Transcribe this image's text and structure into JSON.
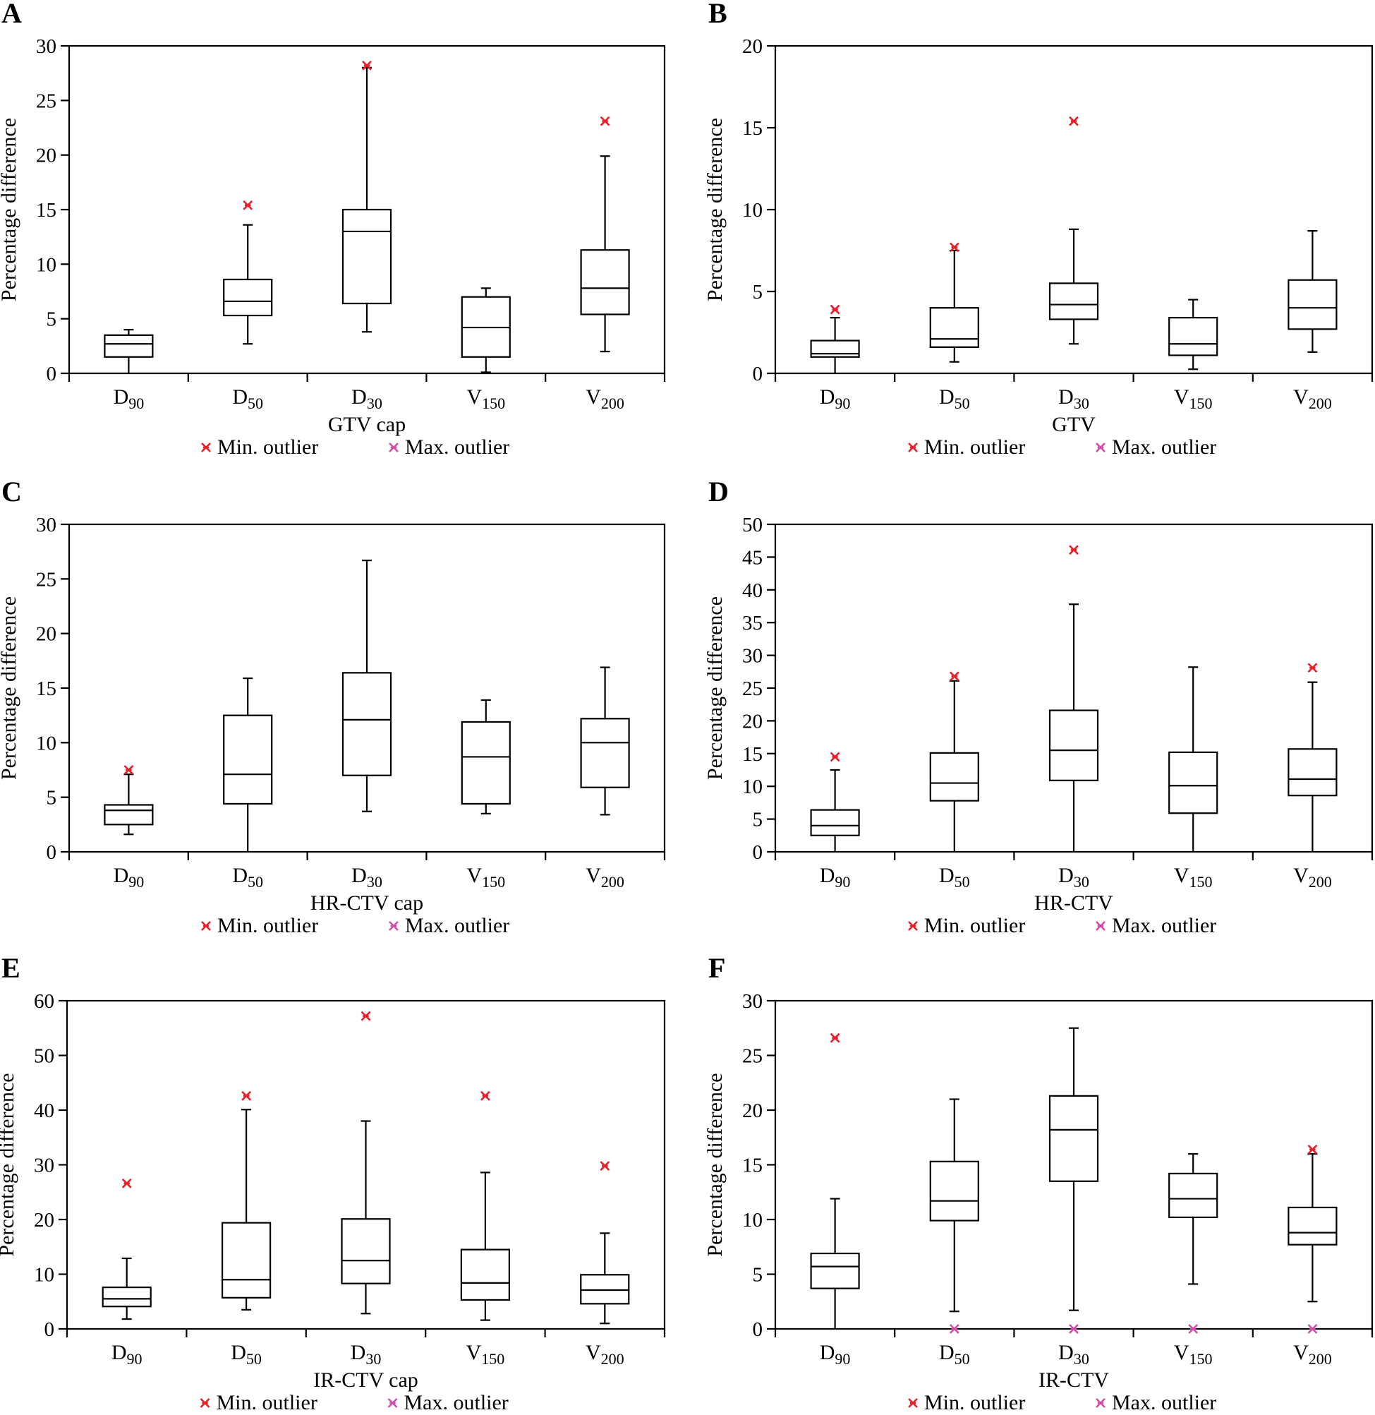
{
  "figure": {
    "marker_colors": {
      "min_outlier": "#e8202a",
      "max_outlier": "#d04fa8"
    },
    "legend": {
      "min_label": "Min. outlier",
      "max_label": "Max. outlier"
    }
  },
  "chart_data": [
    {
      "panel": "A",
      "type": "boxplot",
      "title": "",
      "xlabel": "GTV cap",
      "ylabel": "Percentage difference",
      "ylim": [
        0,
        30
      ],
      "yticks": [
        0,
        5,
        10,
        15,
        20,
        25,
        30
      ],
      "grid": false,
      "legend_position": "bottom-center",
      "categories": [
        {
          "base": "D",
          "sub": "90"
        },
        {
          "base": "D",
          "sub": "50"
        },
        {
          "base": "D",
          "sub": "30"
        },
        {
          "base": "V",
          "sub": "150"
        },
        {
          "base": "V",
          "sub": "200"
        }
      ],
      "boxes": [
        {
          "whisker_low": 0.0,
          "q1": 1.5,
          "median": 2.7,
          "q3": 3.5,
          "whisker_high": 4.0,
          "min_outlier": null,
          "max_outlier": null
        },
        {
          "whisker_low": 2.7,
          "q1": 5.3,
          "median": 6.6,
          "q3": 8.6,
          "whisker_high": 13.6,
          "min_outlier": 15.4,
          "max_outlier": null
        },
        {
          "whisker_low": 3.8,
          "q1": 6.4,
          "median": 13.0,
          "q3": 15.0,
          "whisker_high": 28.0,
          "min_outlier": 28.2,
          "max_outlier": null
        },
        {
          "whisker_low": 0.1,
          "q1": 1.5,
          "median": 4.2,
          "q3": 7.0,
          "whisker_high": 7.8,
          "min_outlier": null,
          "max_outlier": null
        },
        {
          "whisker_low": 2.0,
          "q1": 5.4,
          "median": 7.8,
          "q3": 11.3,
          "whisker_high": 19.9,
          "min_outlier": 23.1,
          "max_outlier": null
        }
      ]
    },
    {
      "panel": "B",
      "type": "boxplot",
      "title": "",
      "xlabel": "GTV",
      "ylabel": "Percentage difference",
      "ylim": [
        0,
        20
      ],
      "yticks": [
        0,
        5,
        10,
        15,
        20
      ],
      "grid": false,
      "legend_position": "bottom-center",
      "categories": [
        {
          "base": "D",
          "sub": "90"
        },
        {
          "base": "D",
          "sub": "50"
        },
        {
          "base": "D",
          "sub": "30"
        },
        {
          "base": "V",
          "sub": "150"
        },
        {
          "base": "V",
          "sub": "200"
        }
      ],
      "boxes": [
        {
          "whisker_low": 0.0,
          "q1": 1.0,
          "median": 1.2,
          "q3": 2.0,
          "whisker_high": 3.4,
          "min_outlier": 3.9,
          "max_outlier": null
        },
        {
          "whisker_low": 0.7,
          "q1": 1.6,
          "median": 2.1,
          "q3": 4.0,
          "whisker_high": 7.5,
          "min_outlier": 7.7,
          "max_outlier": null
        },
        {
          "whisker_low": 1.8,
          "q1": 3.3,
          "median": 4.2,
          "q3": 5.5,
          "whisker_high": 8.8,
          "min_outlier": 15.4,
          "max_outlier": null
        },
        {
          "whisker_low": 0.25,
          "q1": 1.1,
          "median": 1.8,
          "q3": 3.4,
          "whisker_high": 4.5,
          "min_outlier": null,
          "max_outlier": null
        },
        {
          "whisker_low": 1.3,
          "q1": 2.7,
          "median": 4.0,
          "q3": 5.7,
          "whisker_high": 8.7,
          "min_outlier": null,
          "max_outlier": null
        }
      ]
    },
    {
      "panel": "C",
      "type": "boxplot",
      "title": "",
      "xlabel": "HR-CTV cap",
      "ylabel": "Percentage difference",
      "ylim": [
        0,
        30
      ],
      "yticks": [
        0,
        5,
        10,
        15,
        20,
        25,
        30
      ],
      "grid": false,
      "legend_position": "bottom-center",
      "categories": [
        {
          "base": "D",
          "sub": "90"
        },
        {
          "base": "D",
          "sub": "50"
        },
        {
          "base": "D",
          "sub": "30"
        },
        {
          "base": "V",
          "sub": "150"
        },
        {
          "base": "V",
          "sub": "200"
        }
      ],
      "boxes": [
        {
          "whisker_low": 1.6,
          "q1": 2.5,
          "median": 3.8,
          "q3": 4.3,
          "whisker_high": 7.1,
          "min_outlier": 7.5,
          "max_outlier": null
        },
        {
          "whisker_low": 0.0,
          "q1": 4.4,
          "median": 7.1,
          "q3": 12.5,
          "whisker_high": 15.9,
          "min_outlier": null,
          "max_outlier": null
        },
        {
          "whisker_low": 3.7,
          "q1": 7.0,
          "median": 12.1,
          "q3": 16.4,
          "whisker_high": 26.7,
          "min_outlier": null,
          "max_outlier": null
        },
        {
          "whisker_low": 3.5,
          "q1": 4.4,
          "median": 8.7,
          "q3": 11.9,
          "whisker_high": 13.9,
          "min_outlier": null,
          "max_outlier": null
        },
        {
          "whisker_low": 3.4,
          "q1": 5.9,
          "median": 10.0,
          "q3": 12.2,
          "whisker_high": 16.9,
          "min_outlier": null,
          "max_outlier": null
        }
      ]
    },
    {
      "panel": "D",
      "type": "boxplot",
      "title": "",
      "xlabel": "HR-CTV",
      "ylabel": "Percentage difference",
      "ylim": [
        0,
        50
      ],
      "yticks": [
        0,
        5,
        10,
        15,
        20,
        25,
        30,
        35,
        40,
        45,
        50
      ],
      "grid": false,
      "legend_position": "bottom-center",
      "categories": [
        {
          "base": "D",
          "sub": "90"
        },
        {
          "base": "D",
          "sub": "50"
        },
        {
          "base": "D",
          "sub": "30"
        },
        {
          "base": "V",
          "sub": "150"
        },
        {
          "base": "V",
          "sub": "200"
        }
      ],
      "boxes": [
        {
          "whisker_low": 0.0,
          "q1": 2.5,
          "median": 4.0,
          "q3": 6.4,
          "whisker_high": 12.5,
          "min_outlier": 14.5,
          "max_outlier": null
        },
        {
          "whisker_low": 0.0,
          "q1": 7.8,
          "median": 10.5,
          "q3": 15.1,
          "whisker_high": 26.1,
          "min_outlier": 26.8,
          "max_outlier": null
        },
        {
          "whisker_low": 0.0,
          "q1": 10.9,
          "median": 15.5,
          "q3": 21.6,
          "whisker_high": 37.8,
          "min_outlier": 46.1,
          "max_outlier": null
        },
        {
          "whisker_low": 0.0,
          "q1": 5.9,
          "median": 10.1,
          "q3": 15.2,
          "whisker_high": 28.2,
          "min_outlier": null,
          "max_outlier": null
        },
        {
          "whisker_low": 0.0,
          "q1": 8.6,
          "median": 11.1,
          "q3": 15.7,
          "whisker_high": 25.9,
          "min_outlier": 28.1,
          "max_outlier": null
        }
      ]
    },
    {
      "panel": "E",
      "type": "boxplot",
      "title": "",
      "xlabel": "IR-CTV cap",
      "ylabel": "Percentage difference",
      "ylim": [
        0,
        60
      ],
      "yticks": [
        0,
        10,
        20,
        30,
        40,
        50,
        60
      ],
      "grid": false,
      "legend_position": "bottom-center",
      "categories": [
        {
          "base": "D",
          "sub": "90"
        },
        {
          "base": "D",
          "sub": "50"
        },
        {
          "base": "D",
          "sub": "30"
        },
        {
          "base": "V",
          "sub": "150"
        },
        {
          "base": "V",
          "sub": "200"
        }
      ],
      "boxes": [
        {
          "whisker_low": 1.8,
          "q1": 4.1,
          "median": 5.5,
          "q3": 7.6,
          "whisker_high": 12.9,
          "min_outlier": 26.6,
          "max_outlier": null
        },
        {
          "whisker_low": 3.5,
          "q1": 5.7,
          "median": 9.0,
          "q3": 19.4,
          "whisker_high": 40.1,
          "min_outlier": 42.6,
          "max_outlier": null
        },
        {
          "whisker_low": 2.8,
          "q1": 8.3,
          "median": 12.5,
          "q3": 20.1,
          "whisker_high": 38.0,
          "min_outlier": 57.2,
          "max_outlier": null
        },
        {
          "whisker_low": 1.6,
          "q1": 5.3,
          "median": 8.4,
          "q3": 14.5,
          "whisker_high": 28.6,
          "min_outlier": 42.6,
          "max_outlier": null
        },
        {
          "whisker_low": 1.0,
          "q1": 4.6,
          "median": 7.1,
          "q3": 9.9,
          "whisker_high": 17.5,
          "min_outlier": 29.8,
          "max_outlier": null
        }
      ]
    },
    {
      "panel": "F",
      "type": "boxplot",
      "title": "",
      "xlabel": "IR-CTV",
      "ylabel": "Percentage difference",
      "ylim": [
        0,
        30
      ],
      "yticks": [
        0,
        5,
        10,
        15,
        20,
        25,
        30
      ],
      "grid": false,
      "legend_position": "bottom-center",
      "categories": [
        {
          "base": "D",
          "sub": "90"
        },
        {
          "base": "D",
          "sub": "50"
        },
        {
          "base": "D",
          "sub": "30"
        },
        {
          "base": "V",
          "sub": "150"
        },
        {
          "base": "V",
          "sub": "200"
        }
      ],
      "boxes": [
        {
          "whisker_low": 0.0,
          "q1": 3.7,
          "median": 5.7,
          "q3": 6.9,
          "whisker_high": 11.9,
          "min_outlier": 26.6,
          "max_outlier": null
        },
        {
          "whisker_low": 1.6,
          "q1": 9.9,
          "median": 11.7,
          "q3": 15.3,
          "whisker_high": 21.0,
          "min_outlier": null,
          "max_outlier": 0.0
        },
        {
          "whisker_low": 1.7,
          "q1": 13.5,
          "median": 18.2,
          "q3": 21.3,
          "whisker_high": 27.5,
          "min_outlier": null,
          "max_outlier": 0.0
        },
        {
          "whisker_low": 4.1,
          "q1": 10.2,
          "median": 11.9,
          "q3": 14.2,
          "whisker_high": 16.0,
          "min_outlier": null,
          "max_outlier": 0.0
        },
        {
          "whisker_low": 2.5,
          "q1": 7.7,
          "median": 8.8,
          "q3": 11.1,
          "whisker_high": 16.0,
          "min_outlier": 16.4,
          "max_outlier": 0.0
        }
      ]
    }
  ]
}
